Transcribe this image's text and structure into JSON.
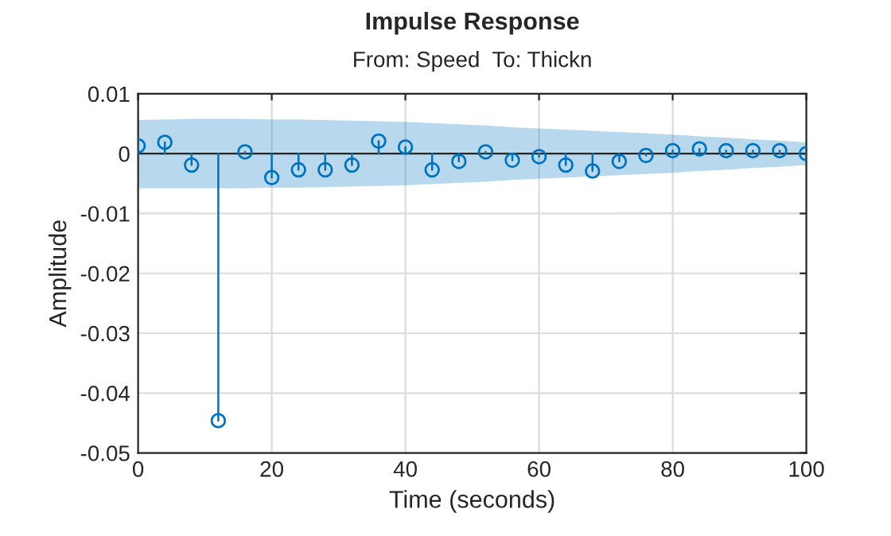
{
  "chart_data": {
    "type": "lollipop",
    "title": "Impulse Response",
    "subtitle": "From: Speed  To: Thickn",
    "xlabel": "Time (seconds)",
    "ylabel": "Amplitude",
    "x": [
      0,
      4,
      8,
      12,
      16,
      20,
      24,
      28,
      32,
      36,
      40,
      44,
      48,
      52,
      56,
      60,
      64,
      68,
      72,
      76,
      80,
      84,
      88,
      92,
      96,
      100
    ],
    "series": [
      {
        "color": "#0072bd",
        "values": [
          0.0013,
          0.0019,
          -0.0019,
          -0.0446,
          0.0003,
          -0.004,
          -0.0027,
          -0.0027,
          -0.0019,
          0.0021,
          0.0011,
          -0.0027,
          -0.0013,
          0.0003,
          -0.0011,
          -0.0005,
          -0.0019,
          -0.0029,
          -0.0013,
          -0.0003,
          0.0005,
          0.0008,
          0.0005,
          0.0005,
          0.0005,
          0.0
        ],
        "upper": [
          0.0056,
          0.0057,
          0.0058,
          0.0058,
          0.0058,
          0.0057,
          0.0057,
          0.0056,
          0.0055,
          0.0054,
          0.0053,
          0.0051,
          0.0049,
          0.0047,
          0.0044,
          0.0042,
          0.004,
          0.0038,
          0.0036,
          0.0034,
          0.0032,
          0.0029,
          0.0027,
          0.0024,
          0.0022,
          0.0019
        ],
        "lower": [
          -0.0058,
          -0.0058,
          -0.0058,
          -0.0058,
          -0.0058,
          -0.0057,
          -0.0057,
          -0.0056,
          -0.0055,
          -0.0054,
          -0.0053,
          -0.0051,
          -0.0049,
          -0.0047,
          -0.0044,
          -0.0042,
          -0.004,
          -0.0038,
          -0.0036,
          -0.0034,
          -0.0032,
          -0.0029,
          -0.0027,
          -0.0024,
          -0.0022,
          -0.0019
        ]
      }
    ],
    "xlim": [
      0,
      100
    ],
    "xticks": [
      0,
      20,
      40,
      60,
      80,
      100
    ],
    "ylim": [
      -0.05,
      0.01
    ],
    "yticks": [
      {
        "value": -0.05,
        "label": "-0.05"
      },
      {
        "value": -0.04,
        "label": "-0.04"
      },
      {
        "value": -0.03,
        "label": "-0.03"
      },
      {
        "value": -0.02,
        "label": "-0.02"
      },
      {
        "value": -0.01,
        "label": "-0.01"
      },
      0,
      0.01
    ],
    "grid": true,
    "marker": "circle"
  }
}
